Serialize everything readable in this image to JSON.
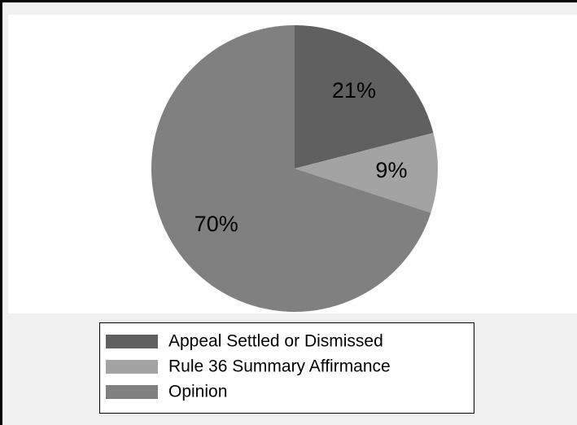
{
  "chart_data": {
    "type": "pie",
    "categories": [
      "Appeal Settled or Dismissed",
      "Rule 36 Summary Affirmance",
      "Opinion"
    ],
    "values": [
      21,
      9,
      70
    ],
    "value_labels": [
      "21%",
      "9%",
      "70%"
    ],
    "colors": [
      "#606060",
      "#a3a3a3",
      "#808080"
    ],
    "legend": "bottom"
  }
}
